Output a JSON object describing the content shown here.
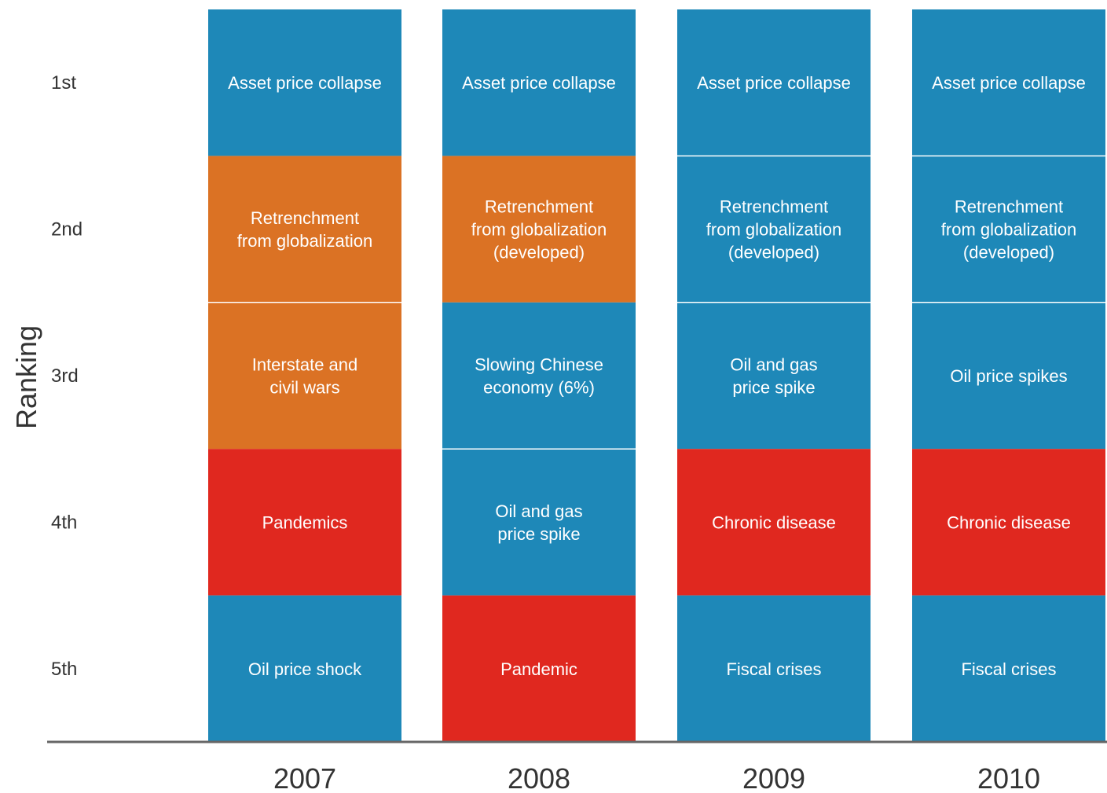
{
  "chart_data": {
    "type": "table",
    "ylabel": "Ranking",
    "rank_labels": [
      "1st",
      "2nd",
      "3rd",
      "4th",
      "5th"
    ],
    "colors": {
      "blue": "#1e88b8",
      "orange": "#db7224",
      "red": "#e0281f"
    },
    "columns": [
      {
        "year": "2007",
        "cells": [
          {
            "text": [
              "Asset price collapse"
            ],
            "color": "blue"
          },
          {
            "text": [
              "Retrenchment",
              "from globalization"
            ],
            "color": "orange"
          },
          {
            "text": [
              "Interstate and",
              "civil wars"
            ],
            "color": "orange"
          },
          {
            "text": [
              "Pandemics"
            ],
            "color": "red"
          },
          {
            "text": [
              "Oil price shock"
            ],
            "color": "blue"
          }
        ]
      },
      {
        "year": "2008",
        "cells": [
          {
            "text": [
              "Asset price collapse"
            ],
            "color": "blue"
          },
          {
            "text": [
              "Retrenchment",
              "from globalization",
              "(developed)"
            ],
            "color": "orange"
          },
          {
            "text": [
              "Slowing Chinese",
              "economy (6%)"
            ],
            "color": "blue"
          },
          {
            "text": [
              "Oil and gas",
              "price spike"
            ],
            "color": "blue"
          },
          {
            "text": [
              "Pandemic"
            ],
            "color": "red"
          }
        ]
      },
      {
        "year": "2009",
        "cells": [
          {
            "text": [
              "Asset price collapse"
            ],
            "color": "blue"
          },
          {
            "text": [
              "Retrenchment",
              "from globalization",
              "(developed)"
            ],
            "color": "blue"
          },
          {
            "text": [
              "Oil and gas",
              "price spike"
            ],
            "color": "blue"
          },
          {
            "text": [
              "Chronic disease"
            ],
            "color": "red"
          },
          {
            "text": [
              "Fiscal crises"
            ],
            "color": "blue"
          }
        ]
      },
      {
        "year": "2010",
        "cells": [
          {
            "text": [
              "Asset price collapse"
            ],
            "color": "blue"
          },
          {
            "text": [
              "Retrenchment",
              "from globalization",
              "(developed)"
            ],
            "color": "blue"
          },
          {
            "text": [
              "Oil price spikes"
            ],
            "color": "blue"
          },
          {
            "text": [
              "Chronic disease"
            ],
            "color": "red"
          },
          {
            "text": [
              "Fiscal crises"
            ],
            "color": "blue"
          }
        ]
      }
    ]
  }
}
